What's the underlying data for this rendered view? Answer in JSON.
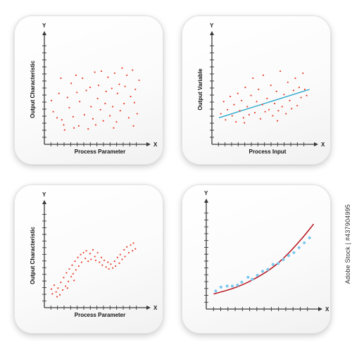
{
  "colors": {
    "axis": "#3a3a3a",
    "red_points": "#e8432f",
    "blue_line": "#2aa8cc",
    "blue_points": "#7cc8ee",
    "red_curve": "#b5121b"
  },
  "side_text": "Adobe Stock | #437904995",
  "chart_data": [
    {
      "type": "scatter",
      "title": "",
      "xlabel": "Process Parameter",
      "ylabel": "Output Characteristic",
      "x_axis_letter": "X",
      "y_axis_letter": "Y",
      "xlim": [
        0,
        10
      ],
      "ylim": [
        0,
        10
      ],
      "grid": false,
      "series": [
        {
          "color": "#e8432f",
          "points": [
            [
              0.3,
              3.9
            ],
            [
              0.5,
              2.8
            ],
            [
              0.9,
              2.2
            ],
            [
              1.3,
              6.1
            ],
            [
              1.4,
              2.0
            ],
            [
              1.6,
              1.5
            ],
            [
              1.7,
              1.0
            ],
            [
              2.0,
              4.2
            ],
            [
              2.2,
              3.2
            ],
            [
              2.4,
              5.6
            ],
            [
              2.6,
              2.3
            ],
            [
              2.9,
              6.4
            ],
            [
              3.0,
              4.7
            ],
            [
              3.2,
              1.4
            ],
            [
              3.3,
              3.8
            ],
            [
              3.6,
              6.1
            ],
            [
              3.8,
              2.5
            ],
            [
              4.0,
              4.9
            ],
            [
              4.2,
              1.1
            ],
            [
              4.4,
              5.2
            ],
            [
              4.5,
              3.3
            ],
            [
              4.7,
              2.1
            ],
            [
              4.9,
              6.7
            ],
            [
              5.0,
              1.5
            ],
            [
              5.2,
              4.1
            ],
            [
              5.3,
              5.4
            ],
            [
              5.5,
              3.0
            ],
            [
              5.6,
              6.8
            ],
            [
              5.8,
              1.9
            ],
            [
              6.0,
              3.6
            ],
            [
              6.1,
              4.8
            ],
            [
              6.3,
              6.2
            ],
            [
              6.5,
              2.4
            ],
            [
              6.7,
              5.1
            ],
            [
              6.8,
              3.3
            ],
            [
              7.0,
              6.6
            ],
            [
              7.2,
              1.8
            ],
            [
              7.3,
              4.6
            ],
            [
              7.5,
              5.5
            ],
            [
              7.6,
              2.9
            ],
            [
              7.8,
              7.1
            ],
            [
              8.0,
              3.6
            ],
            [
              8.1,
              5.3
            ],
            [
              8.3,
              6.4
            ],
            [
              8.5,
              2.2
            ],
            [
              8.7,
              4.3
            ],
            [
              8.9,
              6.9
            ],
            [
              9.0,
              1.4
            ],
            [
              9.1,
              3.7
            ],
            [
              9.2,
              5.0
            ],
            [
              9.4,
              2.6
            ],
            [
              9.6,
              5.9
            ],
            [
              1.1,
              4.6
            ],
            [
              2.7,
              1.2
            ],
            [
              6.9,
              1.2
            ]
          ]
        }
      ]
    },
    {
      "type": "scatter",
      "title": "",
      "xlabel": "Process Input",
      "ylabel": "Output Variable",
      "x_axis_letter": "X",
      "y_axis_letter": "Y",
      "xlim": [
        0,
        10
      ],
      "ylim": [
        0,
        10
      ],
      "grid": false,
      "series": [
        {
          "color": "#e8432f",
          "points": [
            [
              0.5,
              2.6
            ],
            [
              0.8,
              3.8
            ],
            [
              1.0,
              2.0
            ],
            [
              1.2,
              3.0
            ],
            [
              1.5,
              4.3
            ],
            [
              1.7,
              2.4
            ],
            [
              1.9,
              3.5
            ],
            [
              2.1,
              1.8
            ],
            [
              2.3,
              4.6
            ],
            [
              2.5,
              2.9
            ],
            [
              2.7,
              3.9
            ],
            [
              2.9,
              2.2
            ],
            [
              3.1,
              5.2
            ],
            [
              3.3,
              3.3
            ],
            [
              3.5,
              2.5
            ],
            [
              3.7,
              4.4
            ],
            [
              3.9,
              6.1
            ],
            [
              4.1,
              2.7
            ],
            [
              4.3,
              3.8
            ],
            [
              4.5,
              5.0
            ],
            [
              4.7,
              2.1
            ],
            [
              4.9,
              3.5
            ],
            [
              5.0,
              6.4
            ],
            [
              5.2,
              2.8
            ],
            [
              5.4,
              4.1
            ],
            [
              5.6,
              3.0
            ],
            [
              5.8,
              5.4
            ],
            [
              6.0,
              2.4
            ],
            [
              6.2,
              3.6
            ],
            [
              6.4,
              4.8
            ],
            [
              6.6,
              2.9
            ],
            [
              6.8,
              6.8
            ],
            [
              7.0,
              3.3
            ],
            [
              7.2,
              4.5
            ],
            [
              7.4,
              2.6
            ],
            [
              7.6,
              5.7
            ],
            [
              7.8,
              3.9
            ],
            [
              8.0,
              3.1
            ],
            [
              8.2,
              4.9
            ],
            [
              8.4,
              6.1
            ],
            [
              8.6,
              3.4
            ],
            [
              8.8,
              5.2
            ],
            [
              9.0,
              4.2
            ],
            [
              9.2,
              6.6
            ],
            [
              9.4,
              5.0
            ],
            [
              9.6,
              4.4
            ],
            [
              3.0,
              1.7
            ],
            [
              6.5,
              1.9
            ]
          ]
        }
      ],
      "trend_line": {
        "color": "#2aa8cc",
        "from": [
          0.3,
          2.2
        ],
        "to": [
          9.9,
          5.0
        ]
      }
    },
    {
      "type": "scatter",
      "title": "",
      "xlabel": "Process Parameter",
      "ylabel": "Output Characteristic",
      "x_axis_letter": "X",
      "y_axis_letter": "Y",
      "xlim": [
        0,
        10
      ],
      "ylim": [
        0,
        10
      ],
      "grid": false,
      "series": [
        {
          "color": "#e8432f",
          "points": [
            [
              0.3,
              1.5
            ],
            [
              0.4,
              1.0
            ],
            [
              0.6,
              1.9
            ],
            [
              0.8,
              1.2
            ],
            [
              1.0,
              1.6
            ],
            [
              1.2,
              0.9
            ],
            [
              1.3,
              2.2
            ],
            [
              1.5,
              1.4
            ],
            [
              1.6,
              2.7
            ],
            [
              1.8,
              1.8
            ],
            [
              1.9,
              3.2
            ],
            [
              2.1,
              2.3
            ],
            [
              2.2,
              3.6
            ],
            [
              2.4,
              2.8
            ],
            [
              2.5,
              4.0
            ],
            [
              2.6,
              3.1
            ],
            [
              2.8,
              4.4
            ],
            [
              2.9,
              3.5
            ],
            [
              3.1,
              4.8
            ],
            [
              3.2,
              3.9
            ],
            [
              3.4,
              5.1
            ],
            [
              3.5,
              4.3
            ],
            [
              3.7,
              5.3
            ],
            [
              3.9,
              4.7
            ],
            [
              4.0,
              5.5
            ],
            [
              4.2,
              4.4
            ],
            [
              4.4,
              5.2
            ],
            [
              4.5,
              4.6
            ],
            [
              4.7,
              5.6
            ],
            [
              4.9,
              4.9
            ],
            [
              5.0,
              4.5
            ],
            [
              5.2,
              5.3
            ],
            [
              5.4,
              4.3
            ],
            [
              5.6,
              4.8
            ],
            [
              5.7,
              4.0
            ],
            [
              5.9,
              4.5
            ],
            [
              6.1,
              3.8
            ],
            [
              6.3,
              4.3
            ],
            [
              6.4,
              3.6
            ],
            [
              6.6,
              4.1
            ],
            [
              6.8,
              3.7
            ],
            [
              7.0,
              4.4
            ],
            [
              7.1,
              3.9
            ],
            [
              7.3,
              4.8
            ],
            [
              7.5,
              4.2
            ],
            [
              7.6,
              5.1
            ],
            [
              7.8,
              4.6
            ],
            [
              8.0,
              5.6
            ],
            [
              8.1,
              4.9
            ],
            [
              8.3,
              5.9
            ],
            [
              8.5,
              5.3
            ],
            [
              8.7,
              6.1
            ],
            [
              8.9,
              5.5
            ],
            [
              9.0,
              6.3
            ],
            [
              9.2,
              5.7
            ],
            [
              0.9,
              0.7
            ],
            [
              2.0,
              1.6
            ],
            [
              2.7,
              2.4
            ]
          ]
        }
      ]
    },
    {
      "type": "scatter",
      "title": "",
      "xlabel": "",
      "ylabel": "",
      "x_axis_letter": "X",
      "y_axis_letter": "Y",
      "xlim": [
        0,
        10
      ],
      "ylim": [
        0,
        10
      ],
      "grid": false,
      "series": [
        {
          "color": "#7cc8ee",
          "points": [
            [
              0.5,
              1.4
            ],
            [
              1.0,
              1.8
            ],
            [
              1.6,
              1.9
            ],
            [
              2.1,
              1.9
            ],
            [
              2.6,
              2.0
            ],
            [
              3.0,
              2.3
            ],
            [
              3.6,
              2.8
            ],
            [
              4.0,
              2.6
            ],
            [
              4.5,
              3.0
            ],
            [
              5.0,
              3.4
            ],
            [
              5.5,
              3.6
            ],
            [
              6.0,
              4.1
            ],
            [
              6.5,
              4.2
            ],
            [
              7.0,
              4.6
            ],
            [
              7.5,
              5.0
            ],
            [
              8.0,
              5.3
            ],
            [
              8.5,
              5.8
            ],
            [
              9.0,
              6.3
            ],
            [
              9.5,
              6.8
            ]
          ]
        }
      ],
      "curve": {
        "color": "#b5121b",
        "points": [
          [
            0.3,
            1.1
          ],
          [
            1.0,
            1.3
          ],
          [
            2.0,
            1.6
          ],
          [
            3.0,
            2.0
          ],
          [
            4.0,
            2.5
          ],
          [
            5.0,
            3.1
          ],
          [
            6.0,
            3.8
          ],
          [
            7.0,
            4.7
          ],
          [
            8.0,
            5.8
          ],
          [
            9.0,
            7.0
          ],
          [
            9.9,
            8.2
          ]
        ]
      }
    }
  ]
}
